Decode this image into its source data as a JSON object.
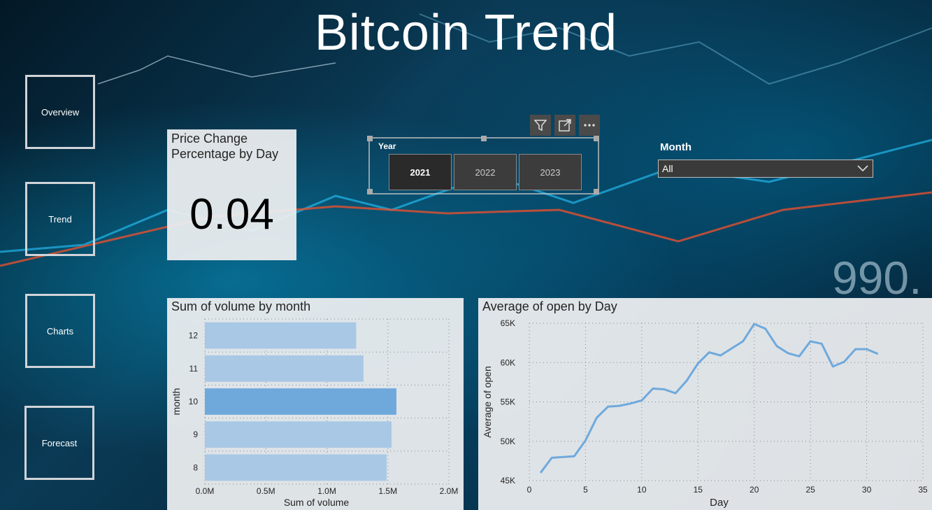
{
  "page": {
    "title": "Bitcoin Trend"
  },
  "nav": {
    "items": [
      {
        "label": "Overview"
      },
      {
        "label": "Trend"
      },
      {
        "label": "Charts"
      },
      {
        "label": "Forecast"
      }
    ]
  },
  "kpi": {
    "title": "Price Change Percentage by Day",
    "value": "0.04"
  },
  "year_slicer": {
    "label": "Year",
    "options": [
      "2021",
      "2022",
      "2023"
    ],
    "selected": "2021"
  },
  "month_filter": {
    "label": "Month",
    "value": "All"
  },
  "chart_data": [
    {
      "type": "bar",
      "orientation": "horizontal",
      "title": "Sum of volume by month",
      "xlabel": "Sum of volume",
      "ylabel": "month",
      "categories": [
        "12",
        "11",
        "10",
        "9",
        "8"
      ],
      "values": [
        1240000,
        1300000,
        1570000,
        1530000,
        1490000
      ],
      "highlighted": "10",
      "xlim": [
        0,
        2000000
      ],
      "xticks": [
        "0.0M",
        "0.5M",
        "1.0M",
        "1.5M",
        "2.0M"
      ],
      "bar_color": "#6fa9dc",
      "bar_color_muted": "#a9c8e6",
      "grid": true
    },
    {
      "type": "line",
      "title": "Average of open by Day",
      "xlabel": "Day",
      "ylabel": "Average of open",
      "x": [
        1,
        2,
        3,
        4,
        5,
        6,
        7,
        8,
        9,
        10,
        11,
        12,
        13,
        14,
        15,
        16,
        17,
        18,
        19,
        20,
        21,
        22,
        23,
        24,
        25,
        26,
        27,
        28,
        29,
        30,
        31
      ],
      "y": [
        46000,
        47900,
        48000,
        48100,
        50100,
        53000,
        54400,
        54500,
        54800,
        55200,
        56700,
        56600,
        56100,
        57700,
        59900,
        61300,
        60900,
        61800,
        62700,
        64900,
        64300,
        62100,
        61200,
        60800,
        62700,
        62400,
        59500,
        60100,
        61700,
        61700,
        61100
      ],
      "xlim": [
        0,
        35
      ],
      "ylim": [
        45000,
        65000
      ],
      "xticks": [
        "0",
        "5",
        "10",
        "15",
        "20",
        "25",
        "30",
        "35"
      ],
      "yticks": [
        "45K",
        "50K",
        "55K",
        "60K",
        "65K"
      ],
      "line_color": "#6fa9dc",
      "grid": true
    }
  ]
}
